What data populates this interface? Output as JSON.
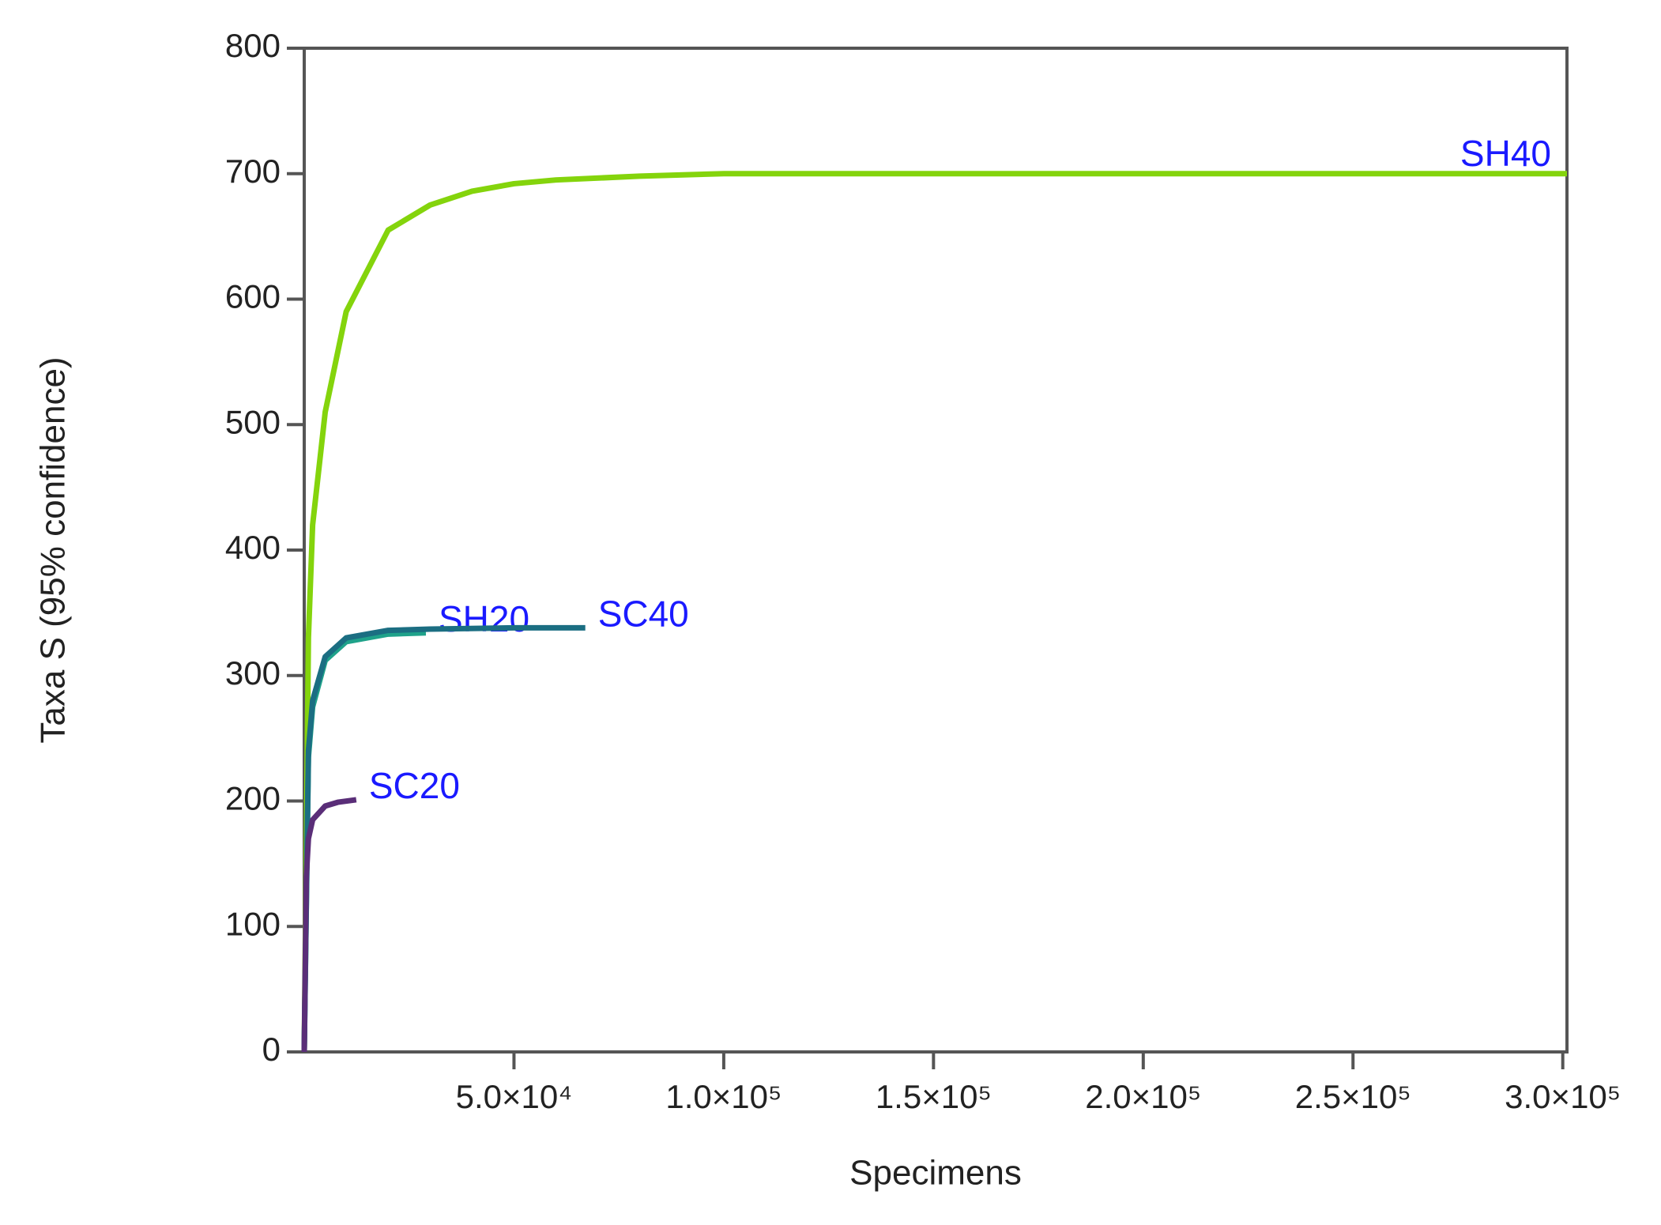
{
  "chart_data": {
    "type": "line",
    "x_label": "Specimens",
    "y_label": "Taxa S (95% confidence)",
    "xlim": [
      0,
      301000
    ],
    "ylim": [
      0,
      800
    ],
    "xticks": [
      {
        "value": 50000,
        "label": "5.0×10⁴"
      },
      {
        "value": 100000,
        "label": "1.0×10⁵"
      },
      {
        "value": 150000,
        "label": "1.5×10⁵"
      },
      {
        "value": 200000,
        "label": "2.0×10⁵"
      },
      {
        "value": 250000,
        "label": "2.5×10⁵"
      },
      {
        "value": 300000,
        "label": "3.0×10⁵"
      }
    ],
    "yticks": [
      0,
      100,
      200,
      300,
      400,
      500,
      600,
      700,
      800
    ],
    "series": [
      {
        "name": "SH40",
        "color": "#84d40c",
        "x": [
          0,
          1000,
          2000,
          5000,
          10000,
          20000,
          30000,
          40000,
          50000,
          60000,
          80000,
          100000,
          150000,
          200000,
          250000,
          301000
        ],
        "values": [
          0,
          330,
          420,
          510,
          590,
          655,
          675,
          686,
          692,
          695,
          698,
          700,
          700,
          700,
          700,
          700
        ]
      },
      {
        "name": "SH20",
        "color": "#1fa28a",
        "x": [
          0,
          1000,
          2000,
          5000,
          10000,
          20000,
          29000
        ],
        "values": [
          0,
          235,
          275,
          312,
          327,
          333,
          334
        ]
      },
      {
        "name": "SC40",
        "color": "#1b6e82",
        "x": [
          0,
          1000,
          2000,
          5000,
          10000,
          20000,
          30000,
          50000,
          67000
        ],
        "values": [
          0,
          240,
          280,
          315,
          330,
          336,
          337,
          338,
          338
        ]
      },
      {
        "name": "SC20",
        "color": "#5a2e78",
        "x": [
          0,
          500,
          1000,
          2000,
          5000,
          8000,
          12400
        ],
        "values": [
          0,
          140,
          170,
          185,
          196,
          199,
          201
        ]
      }
    ]
  }
}
